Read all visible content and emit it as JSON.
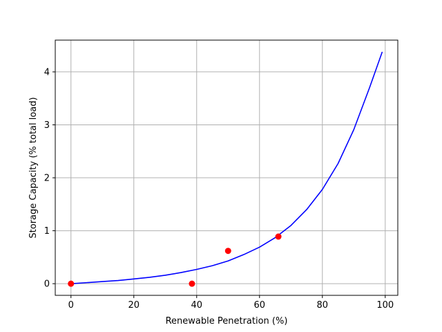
{
  "chart_data": {
    "type": "line",
    "title": "",
    "xlabel": "Renewable Penetration (%)",
    "ylabel": "Storage Capacity (% total load)",
    "xlim": [
      -5,
      104
    ],
    "ylim": [
      -0.22,
      4.6
    ],
    "grid": true,
    "x_ticks": [
      0,
      20,
      40,
      60,
      80,
      100
    ],
    "y_ticks": [
      0,
      1,
      2,
      3,
      4
    ],
    "series": [
      {
        "kind": "line",
        "color": "#0000ff",
        "x": [
          0,
          5,
          10,
          15,
          20,
          25,
          30,
          35,
          40,
          45,
          50,
          55,
          60,
          65,
          70,
          75,
          80,
          85,
          90,
          95,
          99
        ],
        "values": [
          0.0,
          0.02,
          0.04,
          0.06,
          0.09,
          0.12,
          0.16,
          0.21,
          0.27,
          0.34,
          0.43,
          0.55,
          0.69,
          0.87,
          1.1,
          1.4,
          1.78,
          2.27,
          2.91,
          3.7,
          4.37
        ]
      },
      {
        "kind": "scatter",
        "color": "#ff0000",
        "x": [
          0,
          38.5,
          50,
          66
        ],
        "values": [
          0.0,
          0.0,
          0.62,
          0.89
        ]
      }
    ]
  }
}
